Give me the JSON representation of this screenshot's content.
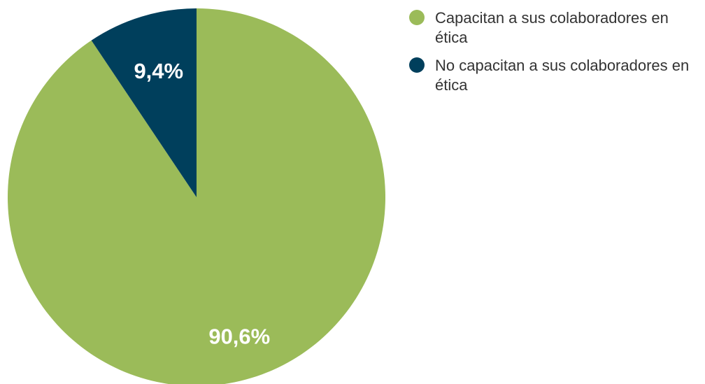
{
  "chart_data": {
    "type": "pie",
    "title": "",
    "slices": [
      {
        "label": "Capacitan a sus colaboradores en ética",
        "value": 90.6,
        "display": "90,6%",
        "color": "#9bbb59"
      },
      {
        "label": "No capacitan a sus colaboradores en ética",
        "value": 9.4,
        "display": "9,4%",
        "color": "#003f5c"
      }
    ],
    "legend_position": "top-right",
    "start": "12 o'clock",
    "direction": "counterclockwise (small slice to the left of top)"
  },
  "legend": {
    "items": [
      {
        "label": "Capacitan a sus colaboradores en ética",
        "color": "#9bbb59"
      },
      {
        "label": "No capacitan a sus colaboradores en ética",
        "color": "#003f5c"
      }
    ]
  }
}
